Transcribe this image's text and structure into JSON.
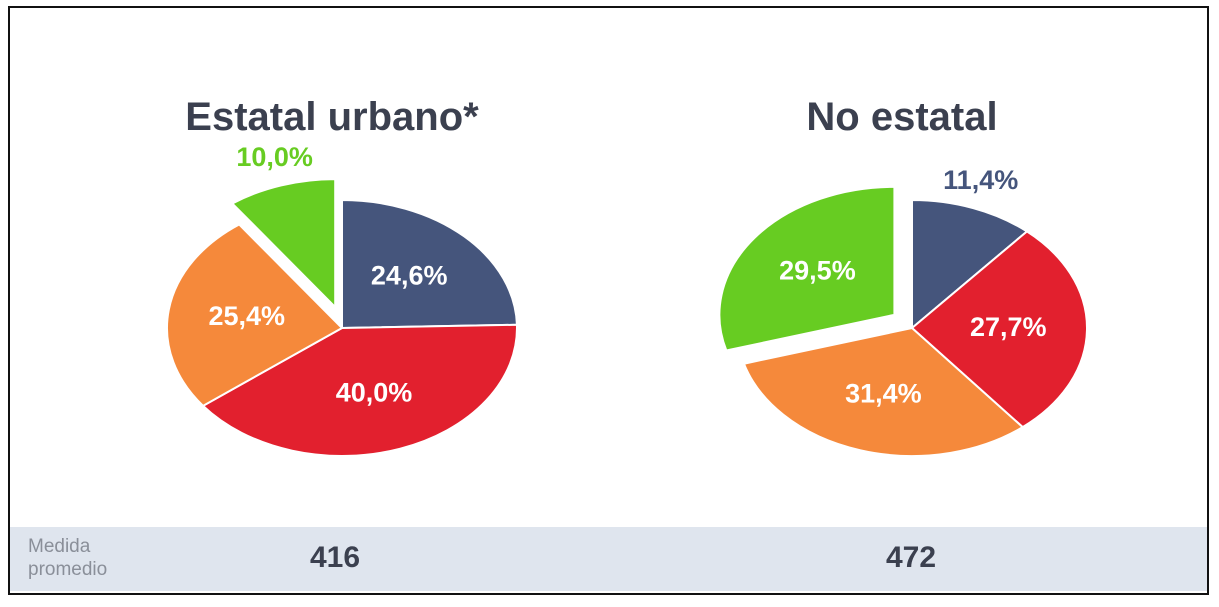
{
  "chart_data": [
    {
      "type": "pie",
      "title": "Estatal urbano*",
      "values": [
        24.6,
        40.0,
        25.4,
        10.0
      ],
      "value_labels": [
        "24,6%",
        "40,0%",
        "25,4%",
        "10,0%"
      ],
      "colors": [
        "#45557c",
        "#e2202e",
        "#f5893b",
        "#67cc22"
      ],
      "exploded": [
        false,
        false,
        false,
        true
      ]
    },
    {
      "type": "pie",
      "title": "No estatal",
      "values": [
        11.4,
        27.7,
        31.4,
        29.5
      ],
      "value_labels": [
        "11,4%",
        "27,7%",
        "31,4%",
        "29,5%"
      ],
      "colors": [
        "#45557c",
        "#e2202e",
        "#f5893b",
        "#67cc22"
      ],
      "exploded": [
        false,
        false,
        false,
        true
      ]
    }
  ],
  "summary": {
    "label": "Medida promedio",
    "values": [
      416,
      472
    ]
  }
}
